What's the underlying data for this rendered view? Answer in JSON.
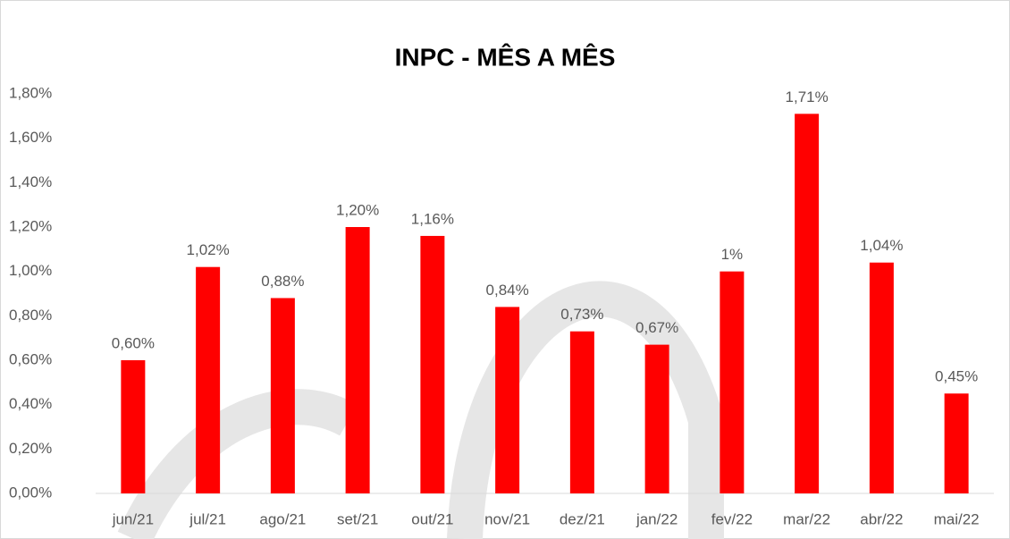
{
  "chart_data": {
    "type": "bar",
    "title": "INPC - MÊS A MÊS",
    "categories": [
      "jun/21",
      "jul/21",
      "ago/21",
      "set/21",
      "out/21",
      "nov/21",
      "dez/21",
      "jan/22",
      "fev/22",
      "mar/22",
      "abr/22",
      "mai/22"
    ],
    "values": [
      0.6,
      1.02,
      0.88,
      1.2,
      1.16,
      0.84,
      0.73,
      0.67,
      1,
      1.71,
      1.04,
      0.45
    ],
    "value_labels": [
      "0,60%",
      "1,02%",
      "0,88%",
      "1,20%",
      "1,16%",
      "0,84%",
      "0,73%",
      "0,67%",
      "1%",
      "1,71%",
      "1,04%",
      "0,45%"
    ],
    "color": "#ff0000",
    "ylim": [
      0,
      1.8
    ],
    "yticks": [
      {
        "value": 0,
        "label": "0,00%"
      },
      {
        "value": 0.2,
        "label": "0,20%"
      },
      {
        "value": 0.4,
        "label": "0,40%"
      },
      {
        "value": 0.6,
        "label": "0,60%"
      },
      {
        "value": 0.8,
        "label": "0,80%"
      },
      {
        "value": 1.0,
        "label": "1,00%"
      },
      {
        "value": 1.2,
        "label": "1,20%"
      },
      {
        "value": 1.4,
        "label": "1,40%"
      },
      {
        "value": 1.6,
        "label": "1,60%"
      },
      {
        "value": 1.8,
        "label": "1,80%"
      }
    ],
    "grid": false
  }
}
